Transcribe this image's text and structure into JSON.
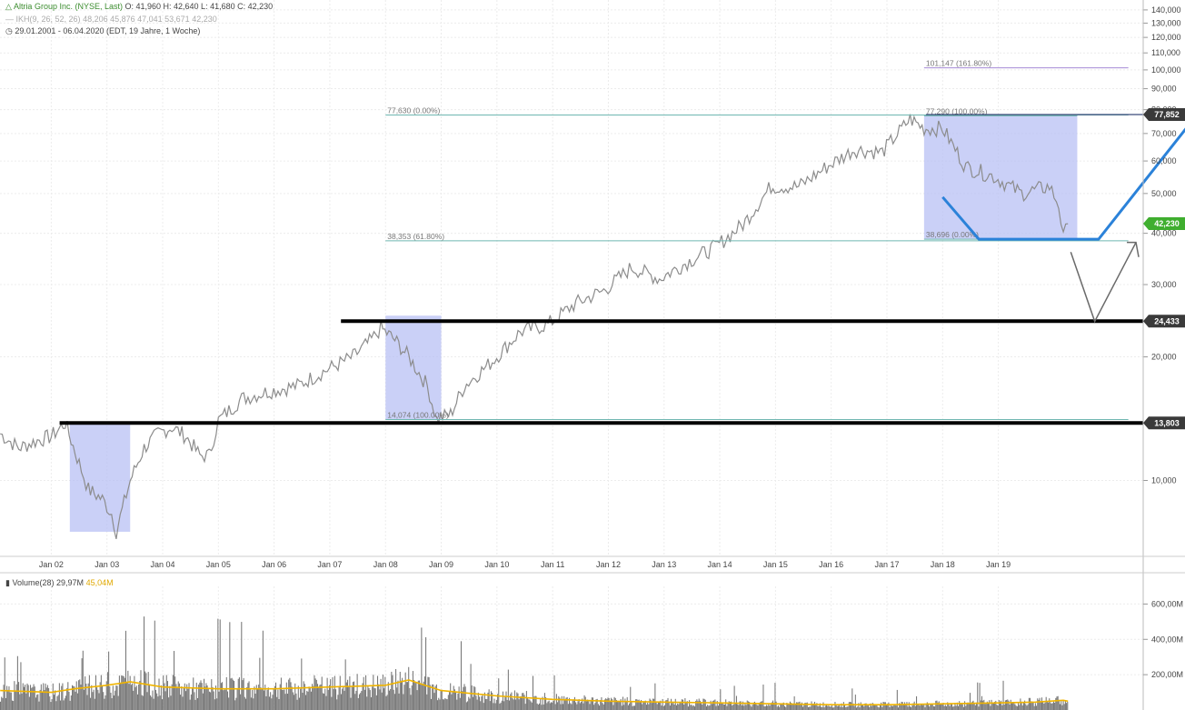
{
  "header": {
    "instrument": "Altria Group Inc. (NYSE, Last)",
    "ohlc": "O: 41,960  H: 42,640  L: 41,680  C: 42,230",
    "indicator": "IKH(9, 26, 52, 26)",
    "indicator_values": "48,206  45,876  47,041  53,671  42,230",
    "range": "29.01.2001 - 06.04.2020",
    "range_detail": "(EDT, 19 Jahre, 1 Woche)",
    "volume_label": "Volume(28)",
    "volume_value": "29,97M",
    "volume_avg": "45,04M"
  },
  "colors": {
    "price_line": "#8c8c8c",
    "zone_fill": "#b8c0f4",
    "fib_line": "#6fb6b0",
    "fib_target": "#a48ad6",
    "arrow_blue": "#2b82d9",
    "volume_bar": "#777777",
    "volume_avg": "#f0b400",
    "last_price_badge": "#3fae2f"
  },
  "chart_data": {
    "type": "line",
    "scale": "log",
    "x": [
      "2001-02",
      "2001-06",
      "2001-10",
      "2002-01",
      "2002-04",
      "2002-07",
      "2002-09",
      "2002-12",
      "2003-02",
      "2003-03",
      "2003-06",
      "2003-09",
      "2003-12",
      "2004-03",
      "2004-06",
      "2004-09",
      "2004-11",
      "2005-01",
      "2005-06",
      "2005-12",
      "2006-06",
      "2006-12",
      "2007-06",
      "2007-10",
      "2007-12",
      "2008-03",
      "2008-06",
      "2008-10",
      "2008-12",
      "2009-03",
      "2009-06",
      "2009-12",
      "2010-06",
      "2010-12",
      "2011-06",
      "2011-12",
      "2012-06",
      "2012-12",
      "2013-06",
      "2013-12",
      "2014-06",
      "2014-12",
      "2015-06",
      "2015-12",
      "2016-06",
      "2016-12",
      "2017-06",
      "2017-09",
      "2018-01",
      "2018-06",
      "2018-12",
      "2019-06",
      "2019-12",
      "2020-02",
      "2020-03",
      "2020-04"
    ],
    "y": [
      13.0,
      12.0,
      12.5,
      12.8,
      13.8,
      11.0,
      9.5,
      9.0,
      8.3,
      7.5,
      10.0,
      12.0,
      13.0,
      13.5,
      12.8,
      11.5,
      11.5,
      14.0,
      15.8,
      16.5,
      17.0,
      18.5,
      20.0,
      22.0,
      23.5,
      22.0,
      20.0,
      17.0,
      14.1,
      14.5,
      17.0,
      19.5,
      23.0,
      24.0,
      27.0,
      29.0,
      33.0,
      31.0,
      34.0,
      37.0,
      42.0,
      52.0,
      52.0,
      58.0,
      64.0,
      63.0,
      76.0,
      72.0,
      72.0,
      58.0,
      55.0,
      50.0,
      52.0,
      47.0,
      38.8,
      42.2
    ],
    "y_ticks": [
      "10,000",
      "20,000",
      "30,000",
      "40,000",
      "50,000",
      "60,000",
      "70,000",
      "80,000",
      "90,000",
      "100,000",
      "110,000",
      "120,000",
      "130,000",
      "140,000"
    ],
    "x_ticks": [
      "Jan 02",
      "Jan 03",
      "Jan 04",
      "Jan 05",
      "Jan 06",
      "Jan 07",
      "Jan 08",
      "Jan 09",
      "Jan 10",
      "Jan 11",
      "Jan 12",
      "Jan 13",
      "Jan 14",
      "Jan 15",
      "Jan 16",
      "Jan 17",
      "Jan 18",
      "Jan 19"
    ],
    "levels": [
      {
        "value": 24.433,
        "label": "24,433"
      },
      {
        "value": 13.803,
        "label": "13,803"
      }
    ],
    "last_price": {
      "value": 42.23,
      "label": "42,230"
    },
    "fib_badge": {
      "value": 77.852,
      "label": "77,852"
    },
    "fib_lines": [
      {
        "value": 101.147,
        "label": "101,147 (161.80%)",
        "from": "2017-09",
        "to": "2021-05"
      },
      {
        "value": 77.63,
        "label": "77,630 (0.00%)",
        "from": "2008-01",
        "to": "2021-05"
      },
      {
        "value": 77.29,
        "label": "77,290 (100.00%)",
        "from": "2017-09",
        "to": "2020-06"
      },
      {
        "value": 38.353,
        "label": "38,353 (61.80%)",
        "from": "2008-01",
        "to": "2021-05"
      },
      {
        "value": 38.696,
        "label": "38,696 (0.00%)",
        "from": "2017-09",
        "to": "2020-06"
      },
      {
        "value": 14.074,
        "label": "14,074 (100.00%)",
        "from": "2008-01",
        "to": "2021-05"
      }
    ],
    "zones": [
      {
        "from": "2002-05",
        "to": "2003-06",
        "low": 7.5,
        "high": 13.8
      },
      {
        "from": "2008-01",
        "to": "2009-01",
        "low": 14.1,
        "high": 25.2
      },
      {
        "from": "2017-09",
        "to": "2020-06",
        "low": 38.7,
        "high": 77.3
      }
    ],
    "volume": {
      "y_ticks": [
        "200,00M",
        "400,00M",
        "600,00M"
      ],
      "avg_x": [
        "2001-02",
        "2002-01",
        "2002-06",
        "2003-01",
        "2003-06",
        "2004-01",
        "2005-01",
        "2006-01",
        "2007-01",
        "2008-01",
        "2008-06",
        "2009-01",
        "2010-01",
        "2011-01",
        "2012-01",
        "2013-01",
        "2014-01",
        "2015-01",
        "2016-01",
        "2017-01",
        "2018-01",
        "2019-01",
        "2019-09",
        "2020-03",
        "2020-04"
      ],
      "avg_y": [
        110,
        100,
        120,
        140,
        160,
        130,
        120,
        120,
        130,
        140,
        170,
        110,
        80,
        60,
        50,
        45,
        40,
        35,
        30,
        30,
        35,
        40,
        45,
        55,
        50
      ]
    }
  }
}
